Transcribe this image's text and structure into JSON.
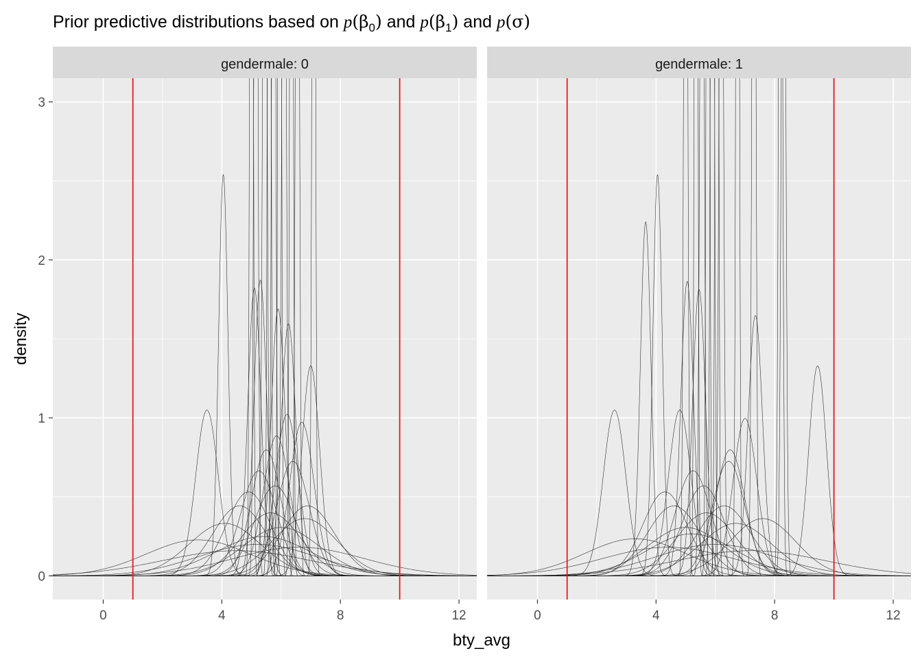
{
  "chart_data": {
    "type": "line",
    "title": "Prior predictive distributions based on p(β0) and p(β1) and p(σ)",
    "title_parts": {
      "prefix": "Prior predictive distributions based on ",
      "p": "p",
      "open": "(",
      "close": ")",
      "beta": "β",
      "sub0": "0",
      "sub1": "1",
      "sigma": "σ",
      "and": " and "
    },
    "xlabel": "bty_avg",
    "ylabel": "density",
    "xlim": [
      -1.7,
      12.6
    ],
    "ylim": [
      -0.15,
      3.15
    ],
    "x_ticks": [
      0,
      4,
      8,
      12
    ],
    "y_ticks": [
      0,
      1,
      2,
      3
    ],
    "reference_lines": {
      "x": [
        1,
        10
      ],
      "color": "#e41a1c"
    },
    "colors": {
      "panel_bg": "#ebebeb",
      "grid": "#ffffff",
      "strip_bg": "#d9d9d9",
      "curve": "#1a1a1a",
      "ref": "#e41a1c"
    },
    "panels": [
      {
        "label": "gendermale: 0",
        "series": [
          {
            "mean": 3.5,
            "sd": 0.38
          },
          {
            "mean": 4.05,
            "sd": 0.157
          },
          {
            "mean": 5.3,
            "sd": 0.213
          },
          {
            "mean": 5.1,
            "sd": 0.219
          },
          {
            "mean": 5.9,
            "sd": 0.236
          },
          {
            "mean": 6.25,
            "sd": 0.25
          },
          {
            "mean": 7.0,
            "sd": 0.3
          },
          {
            "mean": 6.2,
            "sd": 0.39
          },
          {
            "mean": 6.7,
            "sd": 0.41
          },
          {
            "mean": 5.5,
            "sd": 0.5
          },
          {
            "mean": 4.9,
            "sd": 0.75
          },
          {
            "mean": 5.8,
            "sd": 0.7
          },
          {
            "mean": 6.9,
            "sd": 0.9
          },
          {
            "mean": 4.1,
            "sd": 1.2
          },
          {
            "mean": 5.4,
            "sd": 1.6
          },
          {
            "mean": 3.2,
            "sd": 1.75
          },
          {
            "mean": 6.0,
            "sd": 1.3
          },
          {
            "mean": 4.5,
            "sd": 2.5
          },
          {
            "mean": 6.6,
            "sd": 2.2
          },
          {
            "mean": 5.2,
            "sd": 2.0
          },
          {
            "mean": 5.0,
            "sd": 0.05
          },
          {
            "mean": 5.15,
            "sd": 0.06
          },
          {
            "mean": 5.45,
            "sd": 0.07
          },
          {
            "mean": 5.6,
            "sd": 0.05
          },
          {
            "mean": 5.75,
            "sd": 0.06
          },
          {
            "mean": 5.95,
            "sd": 0.05
          },
          {
            "mean": 6.1,
            "sd": 0.07
          },
          {
            "mean": 6.35,
            "sd": 0.05
          },
          {
            "mean": 6.55,
            "sd": 0.06
          },
          {
            "mean": 7.1,
            "sd": 0.05
          },
          {
            "mean": 5.25,
            "sd": 0.6
          },
          {
            "mean": 6.4,
            "sd": 0.55
          },
          {
            "mean": 4.6,
            "sd": 0.9
          },
          {
            "mean": 5.65,
            "sd": 1.0
          },
          {
            "mean": 6.8,
            "sd": 1.1
          },
          {
            "mean": 5.85,
            "sd": 0.45
          }
        ]
      },
      {
        "label": "gendermale: 1",
        "series": [
          {
            "mean": 2.6,
            "sd": 0.38
          },
          {
            "mean": 3.65,
            "sd": 0.178
          },
          {
            "mean": 4.05,
            "sd": 0.157
          },
          {
            "mean": 5.05,
            "sd": 0.214
          },
          {
            "mean": 5.45,
            "sd": 0.22
          },
          {
            "mean": 7.35,
            "sd": 0.242
          },
          {
            "mean": 9.45,
            "sd": 0.3
          },
          {
            "mean": 4.8,
            "sd": 0.38
          },
          {
            "mean": 7.0,
            "sd": 0.4
          },
          {
            "mean": 6.5,
            "sd": 0.5
          },
          {
            "mean": 4.3,
            "sd": 0.75
          },
          {
            "mean": 5.6,
            "sd": 0.7
          },
          {
            "mean": 6.3,
            "sd": 0.9
          },
          {
            "mean": 3.3,
            "sd": 1.7
          },
          {
            "mean": 6.7,
            "sd": 1.2
          },
          {
            "mean": 5.2,
            "sd": 1.5
          },
          {
            "mean": 7.2,
            "sd": 2.5
          },
          {
            "mean": 4.4,
            "sd": 2.2
          },
          {
            "mean": 6.0,
            "sd": 2.0
          },
          {
            "mean": 5.0,
            "sd": 1.3
          },
          {
            "mean": 5.0,
            "sd": 0.06
          },
          {
            "mean": 5.35,
            "sd": 0.05
          },
          {
            "mean": 5.55,
            "sd": 0.07
          },
          {
            "mean": 5.75,
            "sd": 0.05
          },
          {
            "mean": 5.9,
            "sd": 0.06
          },
          {
            "mean": 6.05,
            "sd": 0.05
          },
          {
            "mean": 6.2,
            "sd": 0.07
          },
          {
            "mean": 6.75,
            "sd": 0.05
          },
          {
            "mean": 7.3,
            "sd": 0.06
          },
          {
            "mean": 8.3,
            "sd": 0.07
          },
          {
            "mean": 8.2,
            "sd": 0.06
          },
          {
            "mean": 5.25,
            "sd": 0.6
          },
          {
            "mean": 6.45,
            "sd": 0.55
          },
          {
            "mean": 4.6,
            "sd": 0.9
          },
          {
            "mean": 5.7,
            "sd": 1.0
          },
          {
            "mean": 7.6,
            "sd": 1.1
          }
        ]
      }
    ]
  }
}
